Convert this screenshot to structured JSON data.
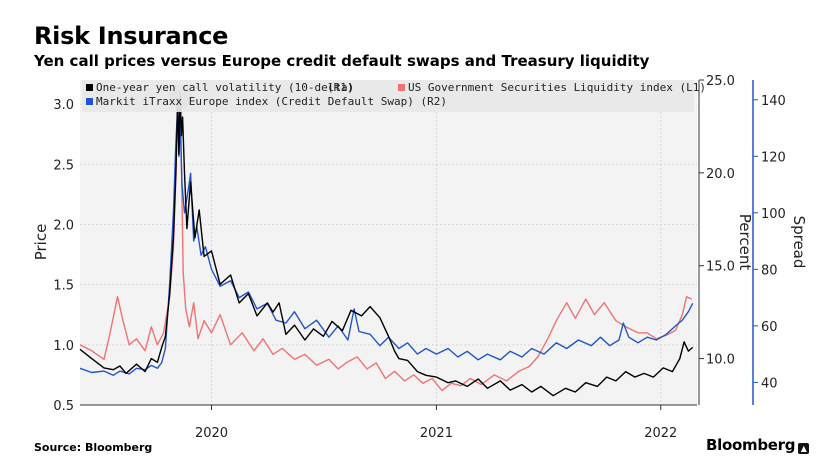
{
  "header": {
    "title": "Risk Insurance",
    "subtitle": "Yen call prices versus Europe credit default swaps and Treasury liquidity"
  },
  "footer": {
    "source": "Source: Bloomberg",
    "brand": "Bloomberg"
  },
  "chart_data": {
    "type": "line",
    "title": "Risk Insurance",
    "subtitle": "Yen call prices versus Europe credit default swaps and Treasury liquidity",
    "xlim": [
      "2019-06-01",
      "2022-03-01"
    ],
    "x_ticks": [
      "2020-01-01",
      "2021-01-01",
      "2022-01-01"
    ],
    "x_tick_labels": [
      "2020",
      "2021",
      "2022"
    ],
    "grid": true,
    "legend_position": "top",
    "axes": {
      "L1": {
        "label": "Price",
        "ylim": [
          0.5,
          3.2
        ],
        "ticks": [
          0.5,
          1.0,
          1.5,
          2.0,
          2.5,
          3.0
        ],
        "tick_labels": [
          "0.5",
          "1.0",
          "1.5",
          "2.0",
          "2.5",
          "3.0"
        ]
      },
      "R1": {
        "label": "Percent",
        "ylim": [
          7.5,
          25.0
        ],
        "ticks": [
          10.0,
          15.0,
          20.0,
          25.0
        ],
        "tick_labels": [
          "10.0",
          "15.0",
          "20.0",
          "25.0"
        ]
      },
      "R2": {
        "label": "Spread",
        "ylim": [
          32,
          147
        ],
        "ticks": [
          40,
          60,
          80,
          100,
          120,
          140
        ],
        "tick_labels": [
          "40",
          "60",
          "80",
          "100",
          "120",
          "140"
        ]
      }
    },
    "series": [
      {
        "name": "One-year yen call volatility (10-delta)",
        "axis_tag": "(R1)",
        "axis": "R1",
        "color": "#000000",
        "points": [
          [
            "2019-06-01",
            10.5
          ],
          [
            "2019-06-20",
            10.0
          ],
          [
            "2019-07-10",
            9.5
          ],
          [
            "2019-07-25",
            9.4
          ],
          [
            "2019-08-05",
            9.6
          ],
          [
            "2019-08-15",
            9.2
          ],
          [
            "2019-09-01",
            9.7
          ],
          [
            "2019-09-15",
            9.3
          ],
          [
            "2019-09-25",
            10.0
          ],
          [
            "2019-10-05",
            9.8
          ],
          [
            "2019-10-12",
            10.6
          ],
          [
            "2019-10-18",
            11.2
          ],
          [
            "2019-10-25",
            13.5
          ],
          [
            "2019-10-31",
            16.5
          ],
          [
            "2019-11-04",
            20.0
          ],
          [
            "2019-11-07",
            24.0
          ],
          [
            "2019-11-09",
            21.0
          ],
          [
            "2019-11-11",
            24.3
          ],
          [
            "2019-11-13",
            22.0
          ],
          [
            "2019-11-15",
            23.0
          ],
          [
            "2019-11-18",
            20.0
          ],
          [
            "2019-11-22",
            17.0
          ],
          [
            "2019-11-28",
            19.5
          ],
          [
            "2019-12-05",
            16.5
          ],
          [
            "2019-12-12",
            18.0
          ],
          [
            "2019-12-20",
            15.5
          ],
          [
            "2020-01-01",
            15.8
          ],
          [
            "2020-01-15",
            14.0
          ],
          [
            "2020-02-01",
            14.5
          ],
          [
            "2020-02-15",
            13.0
          ],
          [
            "2020-03-01",
            13.5
          ],
          [
            "2020-03-15",
            12.3
          ],
          [
            "2020-04-01",
            13.0
          ],
          [
            "2020-04-10",
            12.5
          ],
          [
            "2020-04-20",
            13.0
          ],
          [
            "2020-05-01",
            11.3
          ],
          [
            "2020-05-15",
            11.8
          ],
          [
            "2020-06-01",
            11.0
          ],
          [
            "2020-06-15",
            11.6
          ],
          [
            "2020-07-01",
            11.2
          ],
          [
            "2020-07-15",
            12.0
          ],
          [
            "2020-08-01",
            11.5
          ],
          [
            "2020-08-15",
            12.6
          ],
          [
            "2020-09-01",
            12.3
          ],
          [
            "2020-09-15",
            12.8
          ],
          [
            "2020-10-01",
            12.2
          ],
          [
            "2020-10-15",
            11.2
          ],
          [
            "2020-10-25",
            10.4
          ],
          [
            "2020-11-01",
            10.0
          ],
          [
            "2020-11-15",
            9.9
          ],
          [
            "2020-12-01",
            9.3
          ],
          [
            "2020-12-15",
            9.1
          ],
          [
            "2021-01-01",
            9.0
          ],
          [
            "2021-01-20",
            8.7
          ],
          [
            "2021-02-01",
            8.8
          ],
          [
            "2021-02-20",
            8.5
          ],
          [
            "2021-03-10",
            8.9
          ],
          [
            "2021-03-25",
            8.4
          ],
          [
            "2021-04-15",
            8.8
          ],
          [
            "2021-05-01",
            8.3
          ],
          [
            "2021-05-20",
            8.6
          ],
          [
            "2021-06-05",
            8.2
          ],
          [
            "2021-06-20",
            8.5
          ],
          [
            "2021-07-10",
            8.0
          ],
          [
            "2021-07-30",
            8.4
          ],
          [
            "2021-08-15",
            8.2
          ],
          [
            "2021-09-01",
            8.7
          ],
          [
            "2021-09-20",
            8.5
          ],
          [
            "2021-10-05",
            9.0
          ],
          [
            "2021-10-20",
            8.8
          ],
          [
            "2021-11-05",
            9.3
          ],
          [
            "2021-11-20",
            9.0
          ],
          [
            "2021-12-05",
            9.2
          ],
          [
            "2021-12-20",
            9.0
          ],
          [
            "2022-01-05",
            9.5
          ],
          [
            "2022-01-20",
            9.3
          ],
          [
            "2022-02-01",
            10.0
          ],
          [
            "2022-02-08",
            10.9
          ],
          [
            "2022-02-15",
            10.4
          ],
          [
            "2022-02-22",
            10.6
          ]
        ]
      },
      {
        "name": "US Government Securities Liquidity index",
        "axis_tag": "(L1)",
        "axis": "L1",
        "color": "#f07373",
        "points": [
          [
            "2019-06-01",
            1.0
          ],
          [
            "2019-06-20",
            0.95
          ],
          [
            "2019-07-10",
            0.88
          ],
          [
            "2019-07-20",
            1.1
          ],
          [
            "2019-08-01",
            1.4
          ],
          [
            "2019-08-10",
            1.2
          ],
          [
            "2019-08-20",
            1.0
          ],
          [
            "2019-09-01",
            1.05
          ],
          [
            "2019-09-15",
            0.95
          ],
          [
            "2019-09-25",
            1.15
          ],
          [
            "2019-10-05",
            1.0
          ],
          [
            "2019-10-15",
            1.1
          ],
          [
            "2019-10-25",
            1.4
          ],
          [
            "2019-10-31",
            1.8
          ],
          [
            "2019-11-04",
            2.4
          ],
          [
            "2019-11-07",
            3.05
          ],
          [
            "2019-11-09",
            2.6
          ],
          [
            "2019-11-11",
            3.1
          ],
          [
            "2019-11-13",
            2.5
          ],
          [
            "2019-11-16",
            1.6
          ],
          [
            "2019-11-20",
            1.3
          ],
          [
            "2019-11-26",
            1.15
          ],
          [
            "2019-12-03",
            1.35
          ],
          [
            "2019-12-10",
            1.05
          ],
          [
            "2019-12-20",
            1.2
          ],
          [
            "2020-01-01",
            1.1
          ],
          [
            "2020-01-15",
            1.25
          ],
          [
            "2020-02-01",
            1.0
          ],
          [
            "2020-02-20",
            1.1
          ],
          [
            "2020-03-10",
            0.95
          ],
          [
            "2020-03-25",
            1.05
          ],
          [
            "2020-04-10",
            0.92
          ],
          [
            "2020-04-25",
            0.97
          ],
          [
            "2020-05-15",
            0.88
          ],
          [
            "2020-06-01",
            0.92
          ],
          [
            "2020-06-20",
            0.83
          ],
          [
            "2020-07-10",
            0.88
          ],
          [
            "2020-07-25",
            0.8
          ],
          [
            "2020-08-10",
            0.86
          ],
          [
            "2020-08-25",
            0.9
          ],
          [
            "2020-09-10",
            0.8
          ],
          [
            "2020-09-25",
            0.85
          ],
          [
            "2020-10-10",
            0.72
          ],
          [
            "2020-10-25",
            0.78
          ],
          [
            "2020-11-10",
            0.7
          ],
          [
            "2020-11-25",
            0.75
          ],
          [
            "2020-12-10",
            0.68
          ],
          [
            "2020-12-25",
            0.72
          ],
          [
            "2021-01-10",
            0.62
          ],
          [
            "2021-01-25",
            0.68
          ],
          [
            "2021-02-10",
            0.66
          ],
          [
            "2021-02-25",
            0.72
          ],
          [
            "2021-03-15",
            0.67
          ],
          [
            "2021-04-05",
            0.75
          ],
          [
            "2021-04-25",
            0.7
          ],
          [
            "2021-05-15",
            0.78
          ],
          [
            "2021-06-01",
            0.82
          ],
          [
            "2021-06-15",
            0.9
          ],
          [
            "2021-07-01",
            1.05
          ],
          [
            "2021-07-15",
            1.2
          ],
          [
            "2021-08-01",
            1.35
          ],
          [
            "2021-08-15",
            1.22
          ],
          [
            "2021-09-01",
            1.38
          ],
          [
            "2021-09-15",
            1.25
          ],
          [
            "2021-10-01",
            1.35
          ],
          [
            "2021-10-20",
            1.2
          ],
          [
            "2021-11-05",
            1.15
          ],
          [
            "2021-11-25",
            1.1
          ],
          [
            "2021-12-10",
            1.1
          ],
          [
            "2021-12-25",
            1.05
          ],
          [
            "2022-01-10",
            1.08
          ],
          [
            "2022-01-25",
            1.12
          ],
          [
            "2022-02-05",
            1.25
          ],
          [
            "2022-02-12",
            1.4
          ],
          [
            "2022-02-20",
            1.38
          ]
        ]
      },
      {
        "name": "Markit iTraxx Europe index (Credit Default Swap)",
        "axis_tag": "(R2)",
        "axis": "R2",
        "color": "#2255cc",
        "points": [
          [
            "2019-06-01",
            45.0
          ],
          [
            "2019-06-20",
            43.5
          ],
          [
            "2019-07-10",
            44.0
          ],
          [
            "2019-07-25",
            42.5
          ],
          [
            "2019-08-05",
            44.0
          ],
          [
            "2019-08-20",
            43.0
          ],
          [
            "2019-09-01",
            45.0
          ],
          [
            "2019-09-15",
            44.5
          ],
          [
            "2019-09-25",
            46.0
          ],
          [
            "2019-10-05",
            45.0
          ],
          [
            "2019-10-12",
            47.0
          ],
          [
            "2019-10-18",
            52.0
          ],
          [
            "2019-10-25",
            75.0
          ],
          [
            "2019-10-31",
            100.0
          ],
          [
            "2019-11-04",
            125.0
          ],
          [
            "2019-11-07",
            138.0
          ],
          [
            "2019-11-09",
            120.0
          ],
          [
            "2019-11-11",
            132.0
          ],
          [
            "2019-11-14",
            110.0
          ],
          [
            "2019-11-18",
            100.0
          ],
          [
            "2019-11-24",
            108.0
          ],
          [
            "2019-11-28",
            114.0
          ],
          [
            "2019-12-03",
            90.0
          ],
          [
            "2019-12-08",
            95.0
          ],
          [
            "2019-12-15",
            85.0
          ],
          [
            "2019-12-22",
            88.0
          ],
          [
            "2020-01-01",
            80.0
          ],
          [
            "2020-01-15",
            74.0
          ],
          [
            "2020-02-01",
            76.0
          ],
          [
            "2020-02-15",
            70.0
          ],
          [
            "2020-03-01",
            72.0
          ],
          [
            "2020-03-15",
            66.0
          ],
          [
            "2020-04-01",
            68.0
          ],
          [
            "2020-04-15",
            62.0
          ],
          [
            "2020-05-01",
            61.0
          ],
          [
            "2020-05-15",
            65.0
          ],
          [
            "2020-06-01",
            59.0
          ],
          [
            "2020-06-20",
            62.0
          ],
          [
            "2020-07-10",
            56.0
          ],
          [
            "2020-07-25",
            60.0
          ],
          [
            "2020-08-10",
            55.0
          ],
          [
            "2020-08-20",
            66.0
          ],
          [
            "2020-08-28",
            58.0
          ],
          [
            "2020-09-15",
            57.0
          ],
          [
            "2020-10-01",
            53.0
          ],
          [
            "2020-10-15",
            56.0
          ],
          [
            "2020-11-01",
            52.0
          ],
          [
            "2020-11-15",
            54.0
          ],
          [
            "2020-12-01",
            50.0
          ],
          [
            "2020-12-15",
            52.0
          ],
          [
            "2021-01-01",
            50.0
          ],
          [
            "2021-01-20",
            52.0
          ],
          [
            "2021-02-05",
            49.0
          ],
          [
            "2021-02-20",
            51.0
          ],
          [
            "2021-03-10",
            48.0
          ],
          [
            "2021-03-25",
            50.0
          ],
          [
            "2021-04-15",
            48.0
          ],
          [
            "2021-05-01",
            51.0
          ],
          [
            "2021-05-20",
            49.0
          ],
          [
            "2021-06-05",
            52.0
          ],
          [
            "2021-06-25",
            50.0
          ],
          [
            "2021-07-15",
            54.0
          ],
          [
            "2021-08-01",
            52.0
          ],
          [
            "2021-08-20",
            55.0
          ],
          [
            "2021-09-10",
            53.0
          ],
          [
            "2021-09-25",
            56.0
          ],
          [
            "2021-10-10",
            53.0
          ],
          [
            "2021-10-25",
            55.0
          ],
          [
            "2021-11-01",
            61.0
          ],
          [
            "2021-11-10",
            56.0
          ],
          [
            "2021-11-25",
            54.0
          ],
          [
            "2021-12-10",
            56.0
          ],
          [
            "2021-12-25",
            55.0
          ],
          [
            "2022-01-10",
            57.0
          ],
          [
            "2022-01-25",
            60.0
          ],
          [
            "2022-02-05",
            62.0
          ],
          [
            "2022-02-15",
            65.0
          ],
          [
            "2022-02-22",
            68.0
          ]
        ]
      }
    ]
  }
}
